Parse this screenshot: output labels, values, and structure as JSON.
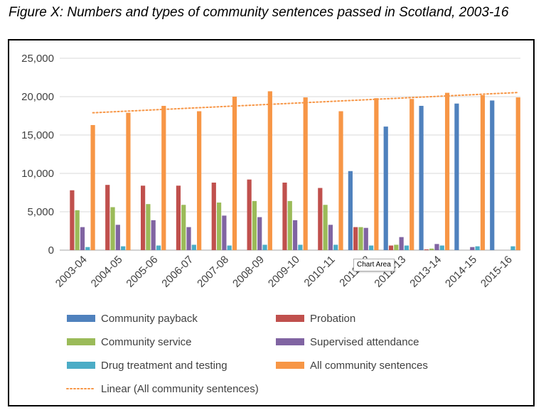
{
  "figure_title": "Figure X: Numbers and types of community sentences passed in Scotland, 2003-16",
  "tooltip_label": "Chart Area",
  "chart_data": {
    "type": "bar",
    "categories": [
      "2003-04",
      "2004-05",
      "2005-06",
      "2006-07",
      "2007-08",
      "2008-09",
      "2009-10",
      "2010-11",
      "2011-12",
      "2012-13",
      "2013-14",
      "2014-15",
      "2015-16"
    ],
    "y_tick_labels": [
      "0",
      "5,000",
      "10,000",
      "15,000",
      "20,000",
      "25,000"
    ],
    "ylim": [
      0,
      25000
    ],
    "grid": true,
    "legend_position": "bottom",
    "series": [
      {
        "name": "Community payback",
        "color": "#4F81BD",
        "values": [
          null,
          null,
          null,
          null,
          null,
          null,
          null,
          null,
          10300,
          16100,
          18800,
          19100,
          19500
        ]
      },
      {
        "name": "Probation",
        "color": "#C0504D",
        "values": [
          7800,
          8500,
          8400,
          8400,
          8800,
          9200,
          8800,
          8100,
          3000,
          600,
          100,
          null,
          null
        ]
      },
      {
        "name": "Community service",
        "color": "#9BBB59",
        "values": [
          5200,
          5600,
          6000,
          5900,
          6200,
          6400,
          6400,
          5900,
          3000,
          700,
          200,
          null,
          null
        ]
      },
      {
        "name": "Supervised attendance",
        "color": "#8064A2",
        "values": [
          3000,
          3300,
          3900,
          3000,
          4500,
          4300,
          3900,
          3300,
          2900,
          1700,
          800,
          400,
          null
        ]
      },
      {
        "name": "Drug treatment and testing",
        "color": "#4BACC6",
        "values": [
          400,
          500,
          600,
          700,
          600,
          700,
          700,
          700,
          600,
          600,
          600,
          500,
          500
        ]
      },
      {
        "name": "All community sentences",
        "color": "#F79646",
        "values": [
          16300,
          17900,
          18800,
          18100,
          20000,
          20700,
          19900,
          18100,
          19800,
          19700,
          20500,
          20200,
          19900
        ]
      }
    ],
    "trendline": {
      "name": "Linear  (All community sentences)",
      "series": "All community sentences",
      "kind": "linear",
      "color": "#F79646",
      "values": [
        17900,
        18120,
        18340,
        18560,
        18780,
        19000,
        19220,
        19440,
        19660,
        19880,
        20100,
        20320,
        20540
      ]
    }
  }
}
